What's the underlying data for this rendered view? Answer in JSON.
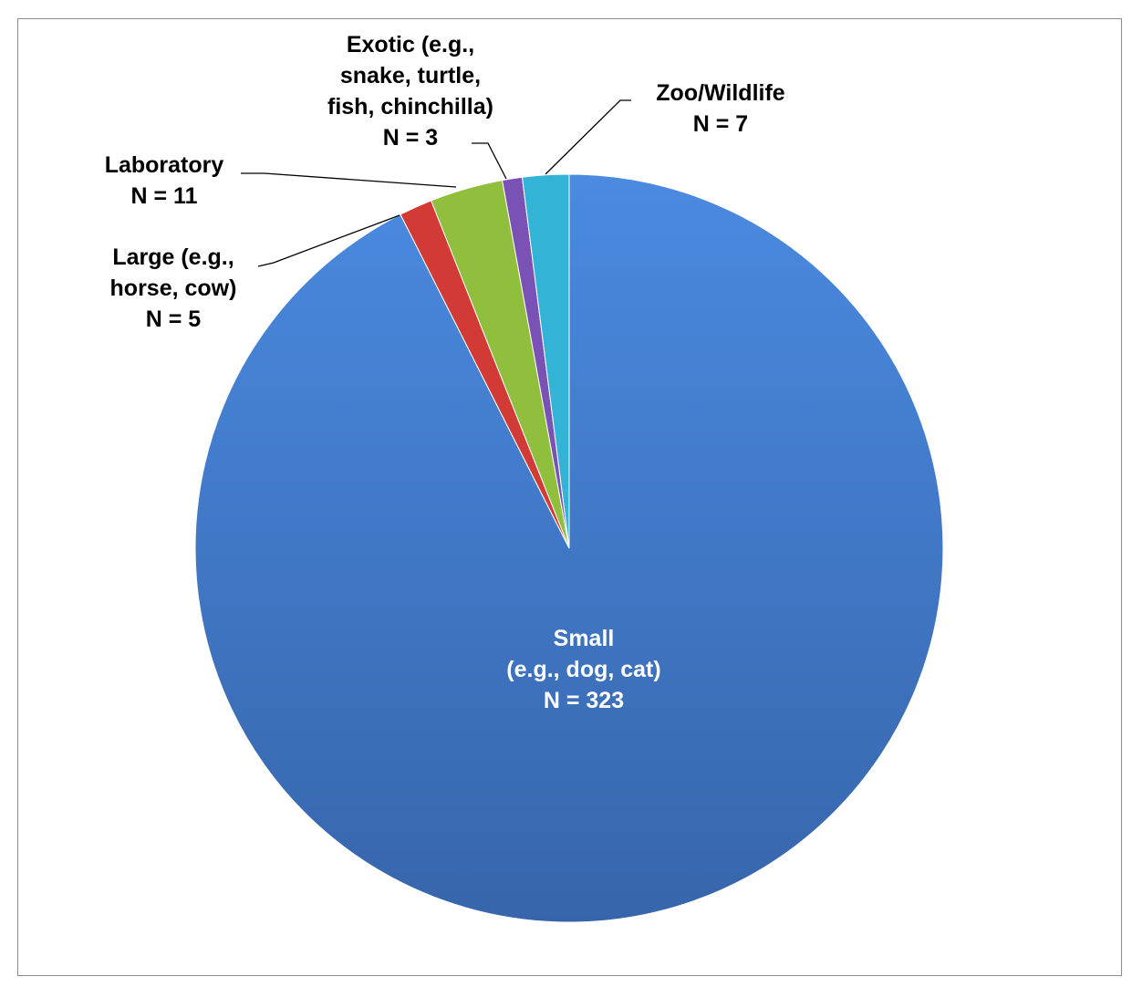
{
  "chart_data": {
    "type": "pie",
    "categories": [
      "Small",
      "Large",
      "Laboratory",
      "Exotic",
      "Zoo/Wildlife"
    ],
    "values": [
      323,
      5,
      11,
      3,
      7
    ],
    "colors": [
      "#3f7fd6",
      "#d23a35",
      "#8fbf3c",
      "#7a52b5",
      "#33b3d6"
    ],
    "labels": [
      [
        "Small",
        "(e.g., dog, cat)",
        "N = 323"
      ],
      [
        "Large (e.g.,",
        "horse, cow)",
        "N = 5"
      ],
      [
        "Laboratory",
        "N = 11"
      ],
      [
        "Exotic (e.g.,",
        "snake, turtle,",
        "fish, chinchilla)",
        "N = 3"
      ],
      [
        "Zoo/Wildlife",
        "N = 7"
      ]
    ],
    "start_angle_deg": 0,
    "direction": "clockwise-from-top",
    "legend": "none"
  }
}
